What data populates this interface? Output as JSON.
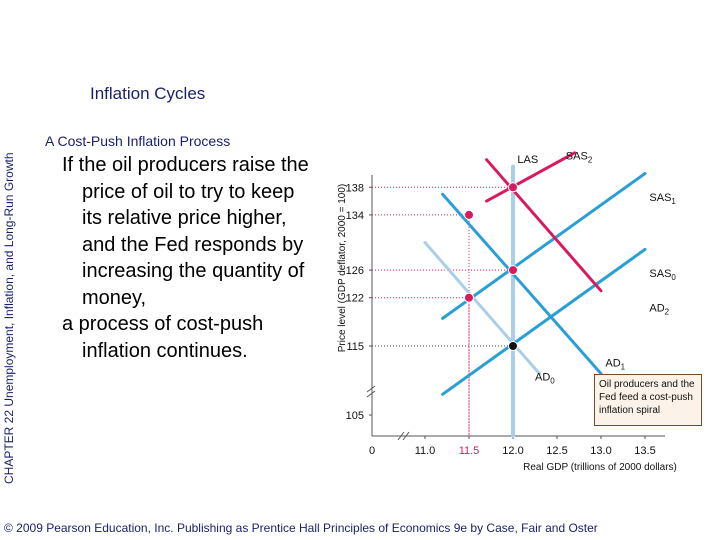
{
  "slide": {
    "title": "Inflation Cycles",
    "subtitle": "A Cost-Push Inflation Process",
    "side_label": "CHAPTER 22  Unemployment, Inflation, and Long-Run Growth",
    "body_line1": "If the oil producers raise the price of oil to try to keep its relative price higher, and the Fed responds by increasing the quantity of money,",
    "body_line2": "a process of cost-push inflation continues.",
    "footer": "© 2009 Pearson Education, Inc. Publishing as Prentice Hall  Principles of Economics 9e by Case, Fair and Oster"
  },
  "chart_data": {
    "type": "line",
    "xlabel": "Real GDP (trillions of 2000 dollars)",
    "ylabel": "Price level (GDP deflator, 2000 = 100)",
    "x_ticks": [
      "0",
      "11.0",
      "11.5",
      "12.0",
      "12.5",
      "13.0",
      "13.5"
    ],
    "y_ticks": [
      "105",
      "115",
      "122",
      "126",
      "134",
      "138"
    ],
    "callout": "Oil producers and the Fed feed a cost-push inflation spiral",
    "series": [
      {
        "name": "LAS",
        "color": "#a9cfe8",
        "points": [
          [
            12.0,
            102
          ],
          [
            12.0,
            141
          ]
        ]
      },
      {
        "name": "SAS0",
        "color": "#2a9fd6",
        "points": [
          [
            11.2,
            108
          ],
          [
            13.5,
            129
          ]
        ]
      },
      {
        "name": "SAS1",
        "color": "#2a9fd6",
        "points": [
          [
            11.2,
            119
          ],
          [
            13.5,
            140
          ]
        ]
      },
      {
        "name": "SAS2",
        "color": "#d81b60",
        "points": [
          [
            11.7,
            136
          ],
          [
            12.7,
            143
          ]
        ]
      },
      {
        "name": "AD0",
        "color": "#a9cfe8",
        "points": [
          [
            11.0,
            130
          ],
          [
            12.3,
            111
          ]
        ]
      },
      {
        "name": "AD1",
        "color": "#2a9fd6",
        "points": [
          [
            11.2,
            137
          ],
          [
            13.0,
            111
          ]
        ]
      },
      {
        "name": "AD2",
        "color": "#d81b60",
        "points": [
          [
            11.7,
            142
          ],
          [
            13.0,
            123
          ]
        ]
      }
    ],
    "curve_labels": [
      {
        "text": "LAS",
        "x": 12.05,
        "y": 141.5
      },
      {
        "text": "SAS2",
        "x": 12.6,
        "y": 142
      },
      {
        "text": "SAS1",
        "x": 13.55,
        "y": 136
      },
      {
        "text": "SAS0",
        "x": 13.55,
        "y": 125
      },
      {
        "text": "AD2",
        "x": 13.55,
        "y": 120
      },
      {
        "text": "AD1",
        "x": 13.05,
        "y": 112
      },
      {
        "text": "AD0",
        "x": 12.25,
        "y": 110
      }
    ],
    "points": [
      {
        "x": 12.0,
        "y": 115,
        "color": "#111111"
      },
      {
        "x": 11.5,
        "y": 122,
        "color": "#d81b60"
      },
      {
        "x": 12.0,
        "y": 126,
        "color": "#d81b60"
      },
      {
        "x": 11.5,
        "y": 134,
        "color": "#d81b60"
      },
      {
        "x": 12.0,
        "y": 138,
        "color": "#d81b60"
      }
    ]
  }
}
